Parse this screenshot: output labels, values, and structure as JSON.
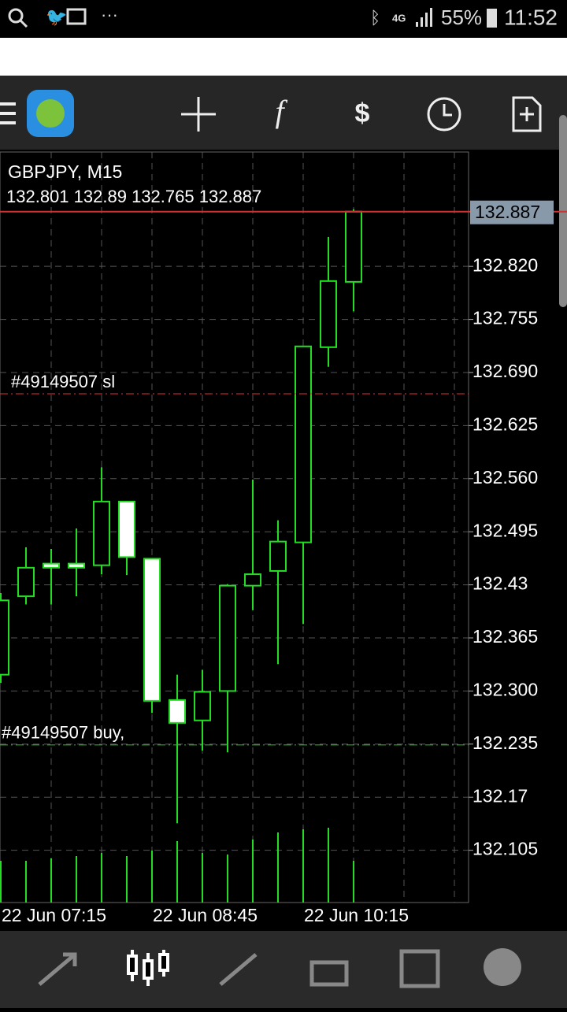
{
  "status_bar": {
    "network": "4G",
    "battery": "55%",
    "time": "11:52"
  },
  "chart_data": {
    "type": "candlestick",
    "title": "GBPJPY, M15",
    "categories": [
      "22 Jun 07:15",
      null,
      null,
      null,
      null,
      null,
      "22 Jun 08:45",
      null,
      null,
      null,
      null,
      null,
      "22 Jun 10:15",
      null,
      null
    ],
    "open": [
      132.32,
      132.416,
      132.456,
      132.456,
      132.454,
      132.532,
      132.462,
      132.289,
      132.264,
      132.3,
      132.429,
      132.447,
      132.482,
      132.721,
      132.801
    ],
    "high": [
      132.42,
      132.476,
      132.474,
      132.499,
      132.574,
      132.532,
      132.462,
      132.32,
      132.326,
      132.431,
      132.559,
      132.509,
      132.722,
      132.856,
      132.89
    ],
    "low": [
      132.31,
      132.406,
      132.406,
      132.416,
      132.443,
      132.442,
      132.273,
      132.138,
      132.227,
      132.225,
      132.399,
      132.333,
      132.382,
      132.697,
      132.765
    ],
    "close": [
      132.411,
      132.451,
      132.451,
      132.451,
      132.532,
      132.464,
      132.288,
      132.261,
      132.299,
      132.429,
      132.443,
      132.483,
      132.722,
      132.802,
      132.887
    ],
    "volume": [
      53,
      53,
      56,
      59,
      63,
      59,
      66,
      78,
      63,
      61,
      80,
      89,
      93,
      95,
      53
    ],
    "ylim": [
      132.041,
      132.96
    ],
    "yticks": [
      {
        "value": 132.82,
        "label": "132.820"
      },
      132.755,
      {
        "value": 132.69,
        "label": "132.690"
      },
      132.625,
      {
        "value": 132.56,
        "label": "132.560"
      },
      132.495,
      132.43,
      132.365,
      {
        "value": 132.3,
        "label": "132.300"
      },
      132.235,
      132.17,
      132.105
    ],
    "grid": true,
    "up_color": "#000000",
    "down_color": "#ffffff",
    "outline_color": "#22dd22",
    "orders": [
      {
        "label": "#49149507 sl",
        "value": 132.664,
        "color": "#dd3333"
      },
      {
        "label": "#49149507 buy,",
        "value": 132.234,
        "color": "#33bb33"
      }
    ]
  }
}
